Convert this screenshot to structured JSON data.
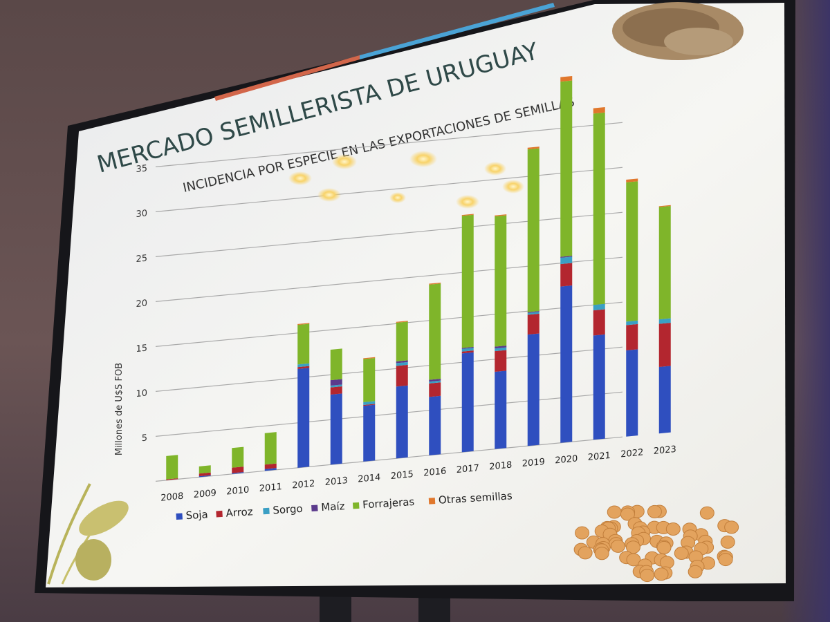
{
  "slide": {
    "title": "MERCADO SEMILLERISTA DE URUGUAY",
    "subtitle": "INCIDENCIA POR ESPECIE EN LAS EXPORTACIONES DE SEMILLAS"
  },
  "colors": {
    "Soja": "#2f4fbf",
    "Arroz": "#b3262f",
    "Sorgo": "#3a9fc4",
    "Maíz": "#5b3a8c",
    "Forrajeras": "#7fb52a",
    "Otras semillas": "#e0772c"
  },
  "chart_data": {
    "type": "bar",
    "stacked": true,
    "title": "",
    "xlabel": "",
    "ylabel": "Millones de U$S FOB",
    "ylim": [
      0,
      40
    ],
    "yticks": [
      5,
      10,
      15,
      20,
      25,
      30,
      35
    ],
    "grid": true,
    "legend": "bottom",
    "categories": [
      "2008",
      "2009",
      "2010",
      "2011",
      "2012",
      "2013",
      "2014",
      "2015",
      "2016",
      "2017",
      "2018",
      "2019",
      "2020",
      "2021",
      "2022",
      "2023"
    ],
    "series": [
      {
        "name": "Soja",
        "values": [
          0.0,
          0.1,
          0.1,
          0.2,
          11.0,
          7.8,
          6.2,
          8.0,
          6.5,
          11.0,
          8.6,
          12.4,
          17.4,
          11.6,
          9.6,
          7.4
        ]
      },
      {
        "name": "Arroz",
        "values": [
          0.1,
          0.3,
          0.6,
          0.5,
          0.2,
          0.8,
          0.1,
          2.3,
          1.5,
          0.2,
          2.3,
          2.2,
          2.5,
          2.8,
          2.8,
          4.8
        ]
      },
      {
        "name": "Sorgo",
        "values": [
          0.0,
          0.0,
          0.0,
          0.0,
          0.3,
          0.2,
          0.3,
          0.3,
          0.2,
          0.3,
          0.3,
          0.2,
          0.7,
          0.6,
          0.4,
          0.5
        ]
      },
      {
        "name": "Maíz",
        "values": [
          0.0,
          0.0,
          0.0,
          0.0,
          0.0,
          0.6,
          0.0,
          0.2,
          0.2,
          0.1,
          0.2,
          0.1,
          0.1,
          0.0,
          0.0,
          0.0
        ]
      },
      {
        "name": "Forrajeras",
        "values": [
          2.6,
          0.8,
          2.2,
          3.5,
          4.4,
          3.4,
          4.8,
          4.3,
          10.6,
          14.7,
          14.5,
          18.1,
          19.5,
          21.3,
          15.5,
          12.5
        ]
      },
      {
        "name": "Otras semillas",
        "values": [
          0.0,
          0.0,
          0.0,
          0.0,
          0.1,
          0.0,
          0.1,
          0.1,
          0.1,
          0.1,
          0.1,
          0.2,
          0.5,
          0.6,
          0.3,
          0.1
        ]
      }
    ]
  }
}
